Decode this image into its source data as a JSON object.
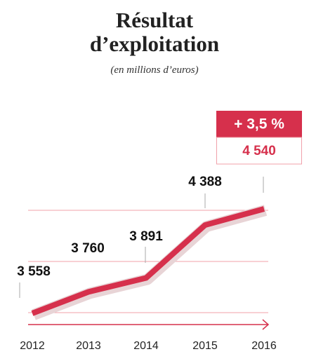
{
  "chart_data": {
    "type": "line",
    "title": "Résultat d’exploitation",
    "subtitle": "(en millions d’euros)",
    "categories": [
      "2012",
      "2013",
      "2014",
      "2015",
      "2016"
    ],
    "values": [
      3558,
      3760,
      3891,
      4388,
      4540
    ],
    "value_labels": [
      "3 558",
      "3 760",
      "3 891",
      "4 388",
      "4 540"
    ],
    "annotation": "+ 3,5 %",
    "color": "#d6304c"
  }
}
